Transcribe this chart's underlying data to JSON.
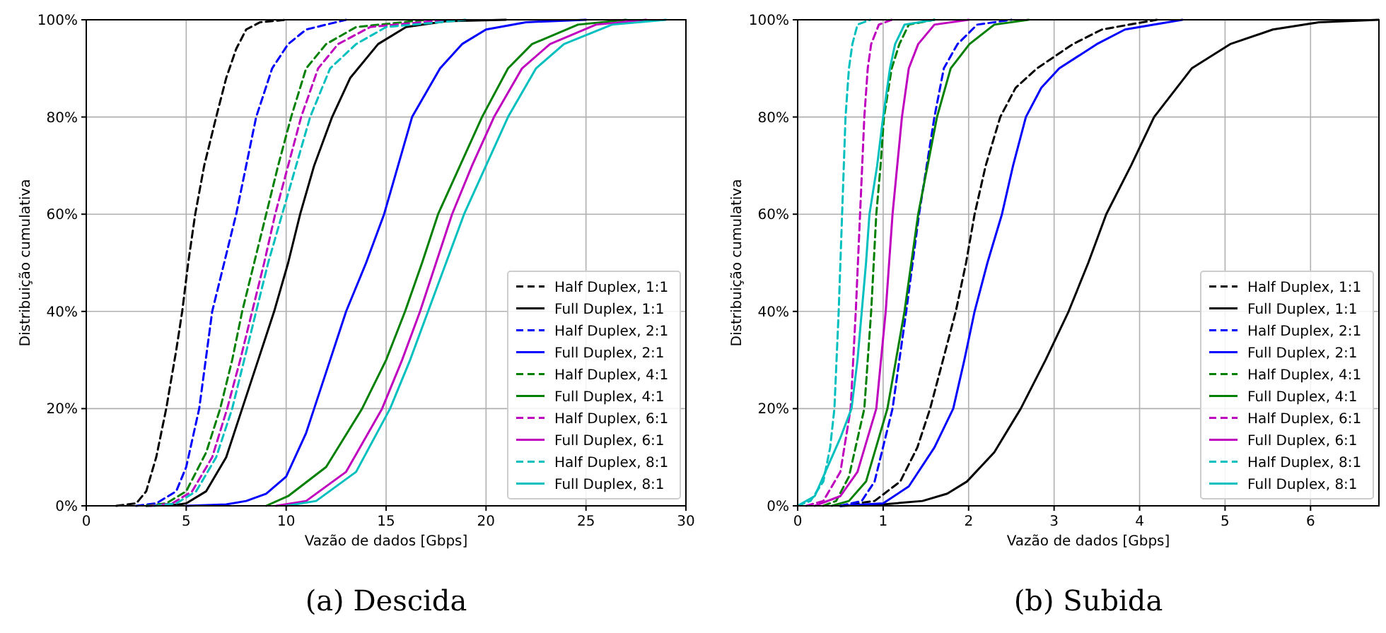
{
  "chart_data": [
    {
      "type": "line",
      "title": "(a) Descida",
      "xlabel": "Vazão de dados [Gbps]",
      "ylabel": "Distribuição cumulativa",
      "xlim": [
        0,
        30
      ],
      "xticks": [
        0,
        5,
        10,
        15,
        20,
        25,
        30
      ],
      "ylim": [
        0,
        100
      ],
      "yticks": [
        {
          "value": 0,
          "label": "0%"
        },
        {
          "value": 20,
          "label": "20%"
        },
        {
          "value": 40,
          "label": "40%"
        },
        {
          "value": 60,
          "label": "60%"
        },
        {
          "value": 80,
          "label": "80%"
        },
        {
          "value": 100,
          "label": "100%"
        }
      ],
      "grid": true,
      "legend": "bottom right",
      "marker": "none",
      "series": [
        {
          "name": "Half Duplex, 1:1",
          "color": "#000000",
          "line_style": "dashed",
          "x": [
            1.5,
            2.5,
            3,
            3.5,
            4,
            4.5,
            4.8,
            5.1,
            5.45,
            5.9,
            6.5,
            7,
            7.5,
            8,
            8.7,
            10
          ],
          "values": [
            0,
            0.5,
            3,
            10,
            20,
            32,
            40,
            50,
            60,
            70,
            80,
            88,
            94,
            98,
            99.5,
            100
          ]
        },
        {
          "name": "Full Duplex, 1:1",
          "color": "#000000",
          "line_style": "solid",
          "x": [
            3,
            4.5,
            5,
            6,
            7,
            7.8,
            8.6,
            9.4,
            10.1,
            10.7,
            11.4,
            12.3,
            13.2,
            14.6,
            16,
            18,
            21
          ],
          "values": [
            0,
            0.2,
            0.5,
            3,
            10,
            20,
            30,
            40,
            50,
            60,
            70,
            80,
            88,
            95,
            98.5,
            99.7,
            100
          ]
        },
        {
          "name": "Half Duplex, 2:1",
          "color": "#0000ff",
          "line_style": "dashed",
          "x": [
            2.5,
            3.5,
            4.5,
            5,
            5.65,
            6.3,
            6.9,
            7.5,
            8,
            8.5,
            9.3,
            10.1,
            11,
            13
          ],
          "values": [
            0,
            0.5,
            3,
            8,
            20,
            40,
            50,
            60,
            70,
            80,
            90,
            95,
            98,
            100
          ]
        },
        {
          "name": "Full Duplex, 2:1",
          "color": "#0000ff",
          "line_style": "solid",
          "x": [
            5,
            7,
            8,
            9,
            10,
            11,
            11.4,
            12.2,
            13,
            14,
            14.9,
            15.6,
            16.3,
            17.7,
            18.8,
            20,
            22,
            25
          ],
          "values": [
            0,
            0.3,
            1,
            2.5,
            6,
            15,
            20,
            30,
            40,
            50,
            60,
            70,
            80,
            90,
            95,
            98,
            99.5,
            100
          ]
        },
        {
          "name": "Half Duplex, 4:1",
          "color": "#008000",
          "line_style": "dashed",
          "x": [
            3,
            4,
            5,
            6,
            6.7,
            7.3,
            7.8,
            8.4,
            9,
            9.6,
            10.25,
            11,
            12,
            13.5,
            17
          ],
          "values": [
            0,
            0.5,
            3,
            11,
            20,
            30,
            40,
            50,
            60,
            70,
            80,
            90,
            95,
            98.5,
            100
          ]
        },
        {
          "name": "Full Duplex, 4:1",
          "color": "#008000",
          "line_style": "solid",
          "x": [
            9,
            10.1,
            12,
            13.8,
            15,
            15.95,
            16.8,
            17.6,
            18.7,
            19.8,
            21.1,
            22.3,
            24.6,
            27
          ],
          "values": [
            0,
            2,
            8,
            20,
            30,
            40,
            50,
            60,
            70,
            80,
            90,
            95,
            99,
            100
          ]
        },
        {
          "name": "Half Duplex, 6:1",
          "color": "#bf00bf",
          "line_style": "dashed",
          "x": [
            3.2,
            4.3,
            5.3,
            6.3,
            7.05,
            7.7,
            8.3,
            8.9,
            9.45,
            10.1,
            10.75,
            11.6,
            12.6,
            14.2,
            18
          ],
          "values": [
            0,
            0.5,
            3,
            10,
            20,
            30,
            40,
            50,
            60,
            70,
            80,
            90,
            95,
            98.5,
            100
          ]
        },
        {
          "name": "Full Duplex, 6:1",
          "color": "#bf00bf",
          "line_style": "solid",
          "x": [
            9.5,
            11,
            13,
            14.8,
            15.8,
            16.7,
            17.5,
            18.3,
            19.3,
            20.4,
            21.8,
            23.2,
            25.5,
            28
          ],
          "values": [
            0,
            1,
            7,
            20,
            30,
            40,
            50,
            60,
            70,
            80,
            90,
            95,
            99,
            100
          ]
        },
        {
          "name": "Half Duplex, 8:1",
          "color": "#00bfbf",
          "line_style": "dashed",
          "x": [
            3.4,
            4.5,
            5.5,
            6.5,
            7.3,
            7.9,
            8.5,
            9.1,
            9.8,
            10.5,
            11.2,
            12.2,
            13.5,
            15,
            19
          ],
          "values": [
            0,
            0.5,
            3,
            10,
            20,
            30,
            40,
            50,
            60,
            70,
            80,
            90,
            95,
            98.5,
            100
          ]
        },
        {
          "name": "Full Duplex, 8:1",
          "color": "#00bfbf",
          "line_style": "solid",
          "x": [
            10,
            11.5,
            13.5,
            15.2,
            16.2,
            17.1,
            18,
            18.9,
            20,
            21.1,
            22.5,
            23.9,
            26.3,
            29
          ],
          "values": [
            0,
            1,
            7,
            20,
            30,
            40,
            50,
            60,
            70,
            80,
            90,
            95,
            99,
            100
          ]
        }
      ]
    },
    {
      "type": "line",
      "title": "(b) Subida",
      "xlabel": "Vazão de dados [Gbps]",
      "ylabel": "Distribuição cumulativa",
      "xlim": [
        0,
        6.8
      ],
      "xticks": [
        0,
        1,
        2,
        3,
        4,
        5,
        6
      ],
      "ylim": [
        0,
        100
      ],
      "yticks": [
        {
          "value": 0,
          "label": "0%"
        },
        {
          "value": 20,
          "label": "20%"
        },
        {
          "value": 40,
          "label": "40%"
        },
        {
          "value": 60,
          "label": "60%"
        },
        {
          "value": 80,
          "label": "80%"
        },
        {
          "value": 100,
          "label": "100%"
        }
      ],
      "grid": true,
      "legend": "bottom right",
      "marker": "none",
      "series": [
        {
          "name": "Half Duplex, 1:1",
          "color": "#000000",
          "line_style": "dashed",
          "x": [
            0.5,
            0.9,
            1.2,
            1.4,
            1.55,
            1.7,
            1.85,
            1.97,
            2.07,
            2.2,
            2.37,
            2.55,
            2.8,
            3.22,
            3.56,
            4.2
          ],
          "values": [
            0,
            1,
            5,
            12,
            20,
            30,
            40,
            50,
            60,
            70,
            80,
            86,
            90,
            95,
            98,
            100
          ]
        },
        {
          "name": "Full Duplex, 1:1",
          "color": "#000000",
          "line_style": "solid",
          "x": [
            0.5,
            1.0,
            1.46,
            1.75,
            1.98,
            2.3,
            2.61,
            2.9,
            3.17,
            3.4,
            3.61,
            3.9,
            4.17,
            4.61,
            5.06,
            5.56,
            6.1,
            6.8
          ],
          "values": [
            0,
            0.3,
            1,
            2.5,
            5,
            11,
            20,
            30,
            40,
            50,
            60,
            70,
            80,
            90,
            95,
            98,
            99.5,
            100
          ]
        },
        {
          "name": "Half Duplex, 2:1",
          "color": "#0000ff",
          "line_style": "dashed",
          "x": [
            0.5,
            0.75,
            0.9,
            1.11,
            1.27,
            1.42,
            1.6,
            1.71,
            1.87,
            2.1,
            2.5
          ],
          "values": [
            0,
            1,
            5,
            20,
            40,
            60,
            80,
            90,
            95,
            99,
            100
          ]
        },
        {
          "name": "Full Duplex, 2:1",
          "color": "#0000ff",
          "line_style": "solid",
          "x": [
            0.5,
            1.0,
            1.3,
            1.6,
            1.82,
            1.95,
            2.07,
            2.22,
            2.39,
            2.52,
            2.67,
            2.85,
            3.06,
            3.5,
            3.83,
            4.5
          ],
          "values": [
            0,
            0.5,
            4,
            12,
            20,
            30,
            40,
            50,
            60,
            70,
            80,
            86,
            90,
            95,
            98,
            100
          ]
        },
        {
          "name": "Half Duplex, 4:1",
          "color": "#008000",
          "line_style": "dashed",
          "x": [
            0.3,
            0.45,
            0.6,
            0.78,
            0.86,
            0.92,
            0.97,
            1.01,
            1.1,
            1.19,
            1.3,
            1.6
          ],
          "values": [
            0,
            1,
            6,
            20,
            40,
            60,
            70,
            80,
            90,
            95,
            99,
            100
          ]
        },
        {
          "name": "Full Duplex, 4:1",
          "color": "#008000",
          "line_style": "solid",
          "x": [
            0.4,
            0.6,
            0.8,
            1.05,
            1.25,
            1.33,
            1.41,
            1.52,
            1.63,
            1.79,
            2.01,
            2.3,
            2.7
          ],
          "values": [
            0,
            1,
            5,
            20,
            40,
            50,
            60,
            70,
            80,
            90,
            95,
            99,
            100
          ]
        },
        {
          "name": "Half Duplex, 6:1",
          "color": "#bf00bf",
          "line_style": "dashed",
          "x": [
            0.1,
            0.3,
            0.5,
            0.62,
            0.68,
            0.73,
            0.78,
            0.82,
            0.86,
            0.95,
            1.1
          ],
          "values": [
            0,
            1,
            7,
            20,
            40,
            60,
            80,
            90,
            95,
            99,
            100
          ]
        },
        {
          "name": "Full Duplex, 6:1",
          "color": "#bf00bf",
          "line_style": "solid",
          "x": [
            0.2,
            0.5,
            0.7,
            0.92,
            1.03,
            1.11,
            1.22,
            1.3,
            1.41,
            1.6,
            2.0
          ],
          "values": [
            0,
            2,
            7,
            20,
            40,
            60,
            80,
            90,
            95,
            99,
            100
          ]
        },
        {
          "name": "Half Duplex, 8:1",
          "color": "#00bfbf",
          "line_style": "dashed",
          "x": [
            0,
            0.15,
            0.3,
            0.38,
            0.43,
            0.48,
            0.52,
            0.56,
            0.6,
            0.64,
            0.7,
            0.85
          ],
          "values": [
            0,
            1,
            5,
            12,
            20,
            40,
            60,
            80,
            90,
            95,
            99,
            100
          ]
        },
        {
          "name": "Full Duplex, 8:1",
          "color": "#00bfbf",
          "line_style": "solid",
          "x": [
            0,
            0.2,
            0.35,
            0.5,
            0.63,
            0.7,
            0.75,
            0.8,
            0.84,
            0.93,
            1.0,
            1.08,
            1.14,
            1.25,
            1.6
          ],
          "values": [
            0,
            2,
            8,
            14,
            20,
            30,
            40,
            50,
            60,
            70,
            80,
            90,
            95,
            99,
            100
          ]
        }
      ]
    }
  ]
}
